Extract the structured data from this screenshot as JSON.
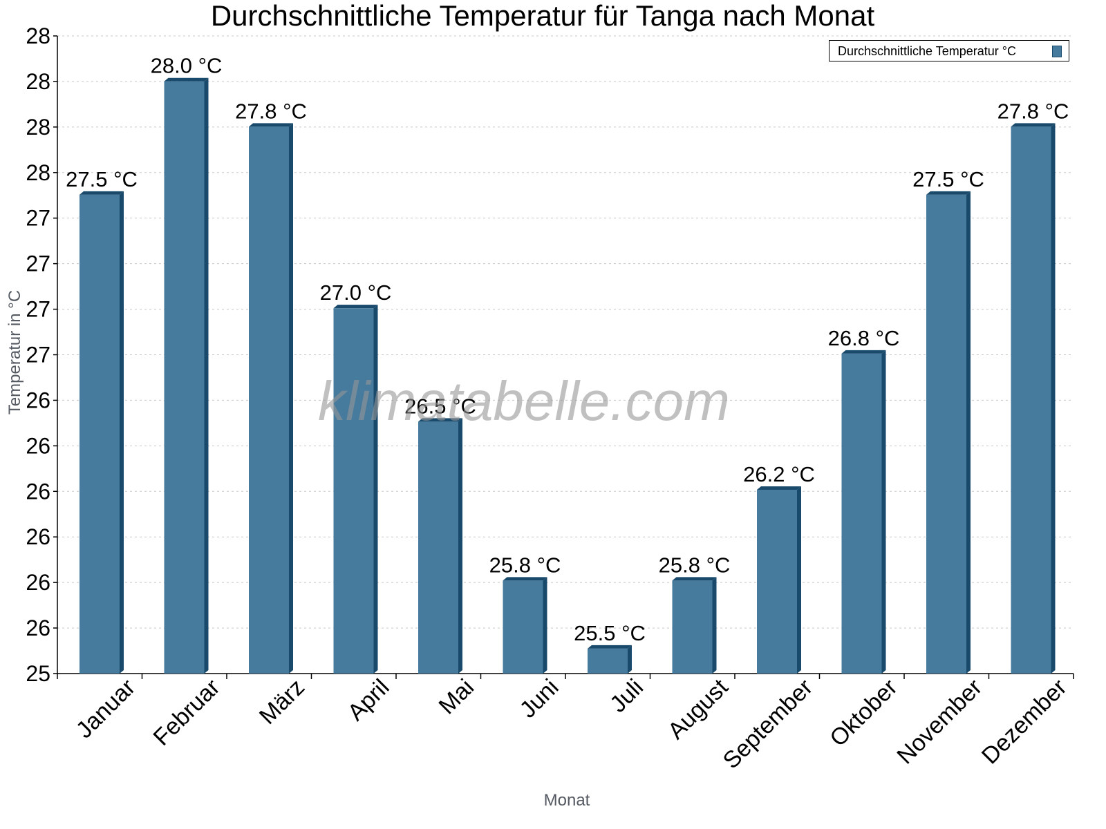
{
  "chart_data": {
    "type": "bar",
    "title": "Durchschnittliche Temperatur für Tanga nach Monat",
    "xlabel": "Monat",
    "ylabel": "Temperatur in °C",
    "categories": [
      "Januar",
      "Februar",
      "März",
      "April",
      "Mai",
      "Juni",
      "Juli",
      "August",
      "September",
      "Oktober",
      "November",
      "Dezember"
    ],
    "series": [
      {
        "name": "Durchschnittliche Temperatur °C",
        "values": [
          27.5,
          28.0,
          27.8,
          27.0,
          26.5,
          25.8,
          25.5,
          25.8,
          26.2,
          26.8,
          27.5,
          27.8
        ],
        "data_labels": [
          "27.5 °C",
          "28.0 °C",
          "27.8 °C",
          "27.0 °C",
          "26.5 °C",
          "25.8 °C",
          "25.5 °C",
          "25.8 °C",
          "26.2 °C",
          "26.8 °C",
          "27.5 °C",
          "27.8 °C"
        ],
        "color": "#467b9d",
        "side_color": "#1a4a6b"
      }
    ],
    "y_tick_labels": [
      "25",
      "26",
      "26",
      "26",
      "26",
      "26",
      "26",
      "27",
      "27",
      "27",
      "27",
      "28",
      "28",
      "28",
      "28"
    ],
    "ylim": [
      25.39,
      28.2
    ],
    "grid": true,
    "legend_position": "top-right",
    "watermark": "klimatabelle.com"
  }
}
